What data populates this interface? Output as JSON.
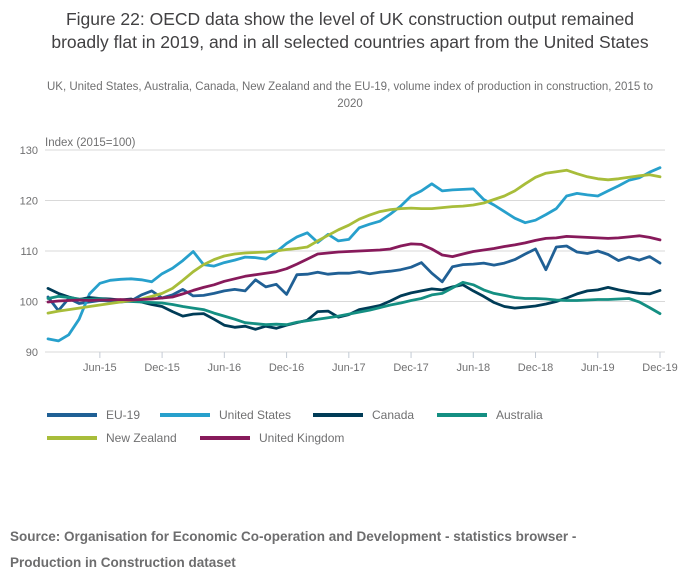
{
  "figure": {
    "title": "Figure 22: OECD data show the level of UK construction output remained broadly flat in 2019, and in all selected countries apart from the United States",
    "subtitle": "UK, United States, Australia, Canada, New Zealand and the EU-19, volume index of production in construction, 2015 to 2020",
    "source": "Source: Organisation for Economic Co-operation and Development - statistics browser - Production in Construction dataset"
  },
  "chart_data": {
    "type": "line",
    "title": "Figure 22: OECD data show the level of UK construction output remained broadly flat in 2019, and in all selected countries apart from the United States",
    "y_axis_label": "Index (2015=100)",
    "ylim": [
      90,
      130
    ],
    "y_ticks": [
      90,
      100,
      110,
      120,
      130
    ],
    "grid": "horizontal",
    "legend_position": "bottom",
    "frequency": "monthly",
    "x_start": "Jan-2015",
    "x_end": "Dec-2019",
    "n_points": 60,
    "x_ticks": [
      {
        "label": "Jun-15",
        "month": 5
      },
      {
        "label": "Dec-15",
        "month": 11
      },
      {
        "label": "Jun-16",
        "month": 17
      },
      {
        "label": "Dec-16",
        "month": 23
      },
      {
        "label": "Jun-17",
        "month": 29
      },
      {
        "label": "Dec-17",
        "month": 35
      },
      {
        "label": "Jun-18",
        "month": 41
      },
      {
        "label": "Dec-18",
        "month": 47
      },
      {
        "label": "Jun-19",
        "month": 53
      },
      {
        "label": "Dec-19",
        "month": 59
      }
    ],
    "series": [
      {
        "name": "EU-19",
        "color": "#206095",
        "values": [
          100.9,
          98.2,
          100.6,
          99.6,
          99.9,
          100.2,
          100.1,
          99.9,
          100.1,
          101.3,
          102.1,
          100.7,
          101.3,
          102.4,
          101.1,
          101.2,
          101.6,
          102.1,
          102.4,
          102.1,
          104.3,
          102.9,
          103.4,
          101.4,
          105.3,
          105.4,
          105.8,
          105.4,
          105.6,
          105.6,
          105.9,
          105.5,
          105.8,
          106.0,
          106.3,
          106.8,
          107.7,
          105.6,
          103.9,
          106.9,
          107.3,
          107.4,
          107.6,
          107.2,
          107.6,
          108.3,
          109.4,
          110.4,
          106.3,
          110.8,
          111.0,
          109.8,
          109.5,
          110.0,
          109.3,
          108.1,
          108.8,
          108.2,
          108.9,
          107.6
        ]
      },
      {
        "name": "United States",
        "color": "#27A0CC",
        "values": [
          92.6,
          92.2,
          93.4,
          96.5,
          101.5,
          103.6,
          104.2,
          104.4,
          104.5,
          104.3,
          103.9,
          105.5,
          106.6,
          108.1,
          109.9,
          107.3,
          107.0,
          107.7,
          108.2,
          108.8,
          108.7,
          108.4,
          109.8,
          111.5,
          112.8,
          113.6,
          111.7,
          113.3,
          112.0,
          112.3,
          114.6,
          115.3,
          115.9,
          117.3,
          118.9,
          120.9,
          121.9,
          123.3,
          121.9,
          122.1,
          122.2,
          122.3,
          120.2,
          119.1,
          117.8,
          116.5,
          115.6,
          116.1,
          117.2,
          118.4,
          120.9,
          121.4,
          121.1,
          120.9,
          121.9,
          122.9,
          124.0,
          124.5,
          125.6,
          126.5
        ]
      },
      {
        "name": "Canada",
        "color": "#003C57",
        "values": [
          102.6,
          101.6,
          100.9,
          100.4,
          100.8,
          100.6,
          100.5,
          100.3,
          100.5,
          99.9,
          99.4,
          99.0,
          98.0,
          97.1,
          97.5,
          97.6,
          96.5,
          95.3,
          94.9,
          95.1,
          94.5,
          95.1,
          94.7,
          95.3,
          95.8,
          96.3,
          98.0,
          98.1,
          96.9,
          97.4,
          98.4,
          98.8,
          99.2,
          100.1,
          101.1,
          101.7,
          102.1,
          102.5,
          102.3,
          102.9,
          103.3,
          102.1,
          101.0,
          99.8,
          99.0,
          98.7,
          98.9,
          99.1,
          99.5,
          100.0,
          100.7,
          101.5,
          102.1,
          102.3,
          102.8,
          102.3,
          101.9,
          101.6,
          101.5,
          102.2
        ]
      },
      {
        "name": "Australia",
        "color": "#148F82",
        "values": [
          100.6,
          101.0,
          100.8,
          100.5,
          100.4,
          100.6,
          100.3,
          100.1,
          100.0,
          99.9,
          99.8,
          99.7,
          99.4,
          99.0,
          98.7,
          98.4,
          97.7,
          97.1,
          96.5,
          95.8,
          95.6,
          95.4,
          95.5,
          95.4,
          95.9,
          96.2,
          96.5,
          96.8,
          97.1,
          97.5,
          97.9,
          98.3,
          98.8,
          99.3,
          99.7,
          100.2,
          100.6,
          101.3,
          101.6,
          102.7,
          103.8,
          103.3,
          102.3,
          101.6,
          101.2,
          100.8,
          100.6,
          100.6,
          100.5,
          100.3,
          100.2,
          100.2,
          100.3,
          100.4,
          100.4,
          100.5,
          100.6,
          99.9,
          98.8,
          97.6
        ]
      },
      {
        "name": "New Zealand",
        "color": "#A8BD3A",
        "values": [
          97.7,
          98.1,
          98.4,
          98.7,
          99.0,
          99.3,
          99.6,
          99.9,
          100.2,
          100.5,
          101.0,
          101.6,
          102.6,
          104.2,
          105.9,
          107.3,
          108.3,
          109.0,
          109.4,
          109.6,
          109.7,
          109.8,
          110.0,
          110.3,
          110.5,
          110.8,
          112.0,
          113.1,
          114.2,
          115.1,
          116.3,
          117.1,
          117.8,
          118.2,
          118.4,
          118.5,
          118.4,
          118.4,
          118.6,
          118.8,
          118.9,
          119.1,
          119.5,
          120.2,
          120.9,
          121.9,
          123.3,
          124.6,
          125.4,
          125.7,
          126.0,
          125.3,
          124.7,
          124.3,
          124.1,
          124.3,
          124.6,
          124.9,
          125.1,
          124.7
        ]
      },
      {
        "name": "United Kingdom",
        "color": "#871A5B",
        "values": [
          99.9,
          100.1,
          100.2,
          100.3,
          100.2,
          100.3,
          100.3,
          100.4,
          100.3,
          100.4,
          100.5,
          100.7,
          100.9,
          101.5,
          102.2,
          102.8,
          103.3,
          104.0,
          104.5,
          105.0,
          105.3,
          105.6,
          105.9,
          106.5,
          107.4,
          108.4,
          109.4,
          109.6,
          109.8,
          109.9,
          110.0,
          110.1,
          110.2,
          110.4,
          111.0,
          111.4,
          111.3,
          110.4,
          109.2,
          108.9,
          109.4,
          109.9,
          110.2,
          110.5,
          110.9,
          111.2,
          111.6,
          112.1,
          112.5,
          112.6,
          112.9,
          112.8,
          112.7,
          112.6,
          112.5,
          112.6,
          112.8,
          113.0,
          112.7,
          112.2
        ]
      }
    ],
    "style": {
      "grid_color": "#d9d9d9",
      "axis_color": "#d9d9d9",
      "tick_color": "#c4cbd4",
      "label_color": "#707071",
      "line_width": 2.8
    }
  }
}
